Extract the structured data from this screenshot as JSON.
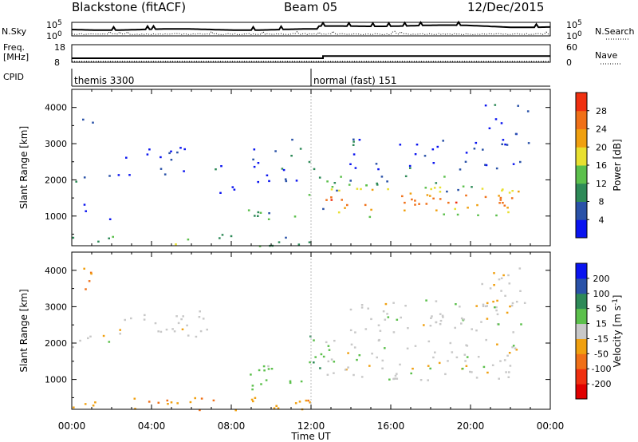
{
  "header": {
    "station": "Blackstone (fitACF)",
    "beam": "Beam 05",
    "date": "12/Dec/2015"
  },
  "chart_data": [
    {
      "type": "line",
      "panel": "noise",
      "left_label": "N.Sky",
      "left_ticks": [
        "10^5",
        "10^0"
      ],
      "right_label": "N.Search",
      "right_ticks": [
        "10^5",
        "10^0"
      ],
      "series": [
        {
          "name": "N.Sky",
          "style": "solid"
        },
        {
          "name": "N.Search",
          "style": "dotted"
        }
      ]
    },
    {
      "type": "line",
      "panel": "frequency",
      "left_label_lines": [
        "Freq.",
        "[MHz]"
      ],
      "left_ticks": [
        "18",
        "8"
      ],
      "right_label": "Nave",
      "right_ticks": [
        "60",
        "0"
      ],
      "series": [
        {
          "name": "Freq.",
          "style": "solid",
          "step_hour": 12.6,
          "before": 10.3,
          "after": 11.5
        },
        {
          "name": "Nave",
          "style": "dotted",
          "level": 0
        }
      ]
    },
    {
      "type": "annotation",
      "panel": "cpid",
      "label": "CPID",
      "modes": [
        {
          "text": "themis 3300",
          "start_hour": 0
        },
        {
          "text": "normal (fast) 151",
          "start_hour": 12
        }
      ]
    },
    {
      "type": "heatmap",
      "panel": "power",
      "ylabel": "Slant Range [km]",
      "ylim": [
        180,
        4500
      ],
      "yticks": [
        1000,
        2000,
        3000,
        4000
      ],
      "xlim_hours": [
        0,
        24
      ],
      "colorbar_label": "Power [dB]",
      "colorbar_ticks": [
        4,
        8,
        12,
        16,
        20,
        24,
        28
      ],
      "colorbar_range": [
        0,
        30
      ],
      "colors": [
        "#0a14f0",
        "#2a52a8",
        "#2e8a58",
        "#5cc04c",
        "#e8e030",
        "#f0a010",
        "#f07018",
        "#f03010",
        "#e00000"
      ],
      "regions": [
        {
          "t": [
            0.0,
            1.0
          ],
          "r": [
            1850,
            2350
          ],
          "v": 8
        },
        {
          "t": [
            0.3,
            1.1
          ],
          "r": [
            3500,
            4150
          ],
          "v": 5
        },
        {
          "t": [
            1.1,
            1.9
          ],
          "r": [
            2000,
            2250
          ],
          "v": 6
        },
        {
          "t": [
            0.5,
            2.0
          ],
          "r": [
            900,
            1400
          ],
          "v": 4
        },
        {
          "t": [
            2.3,
            6.8
          ],
          "r": [
            2150,
            3000
          ],
          "v": 4
        },
        {
          "t": [
            7.0,
            8.5
          ],
          "r": [
            1600,
            2500
          ],
          "v": 4
        },
        {
          "t": [
            8.7,
            11.6
          ],
          "r": [
            750,
            1400
          ],
          "v": 10
        },
        {
          "t": [
            9.0,
            11.6
          ],
          "r": [
            1700,
            3200
          ],
          "v": 4
        },
        {
          "t": [
            11.8,
            12.7
          ],
          "r": [
            1200,
            2700
          ],
          "v": 12
        },
        {
          "t": [
            12.7,
            22.4
          ],
          "r": [
            1000,
            1900
          ],
          "v": 24
        },
        {
          "t": [
            12.7,
            22.4
          ],
          "r": [
            1700,
            2150
          ],
          "v": 10
        },
        {
          "t": [
            13.8,
            22.6
          ],
          "r": [
            2300,
            3200
          ],
          "v": 4
        },
        {
          "t": [
            20.5,
            23.0
          ],
          "r": [
            2900,
            4100
          ],
          "v": 4
        },
        {
          "t": [
            0.0,
            12.0
          ],
          "r": [
            180,
            520
          ],
          "v": 12
        }
      ]
    },
    {
      "type": "heatmap",
      "panel": "velocity",
      "ylabel": "Slant Range [km]",
      "ylim": [
        180,
        4500
      ],
      "yticks": [
        1000,
        2000,
        3000,
        4000
      ],
      "xlim_hours": [
        0,
        24
      ],
      "xticks": [
        "00:00",
        "04:00",
        "08:00",
        "12:00",
        "16:00",
        "20:00",
        "00:00"
      ],
      "xlabel": "Time UT",
      "colorbar_label_parts": [
        "Velocity [m s",
        "-1",
        "]"
      ],
      "colorbar_ticks": [
        200,
        100,
        50,
        15,
        -15,
        -50,
        -100,
        -200
      ],
      "colorbar_range": [
        -250,
        250
      ],
      "colors": [
        "#e00000",
        "#f03010",
        "#f07018",
        "#f0a010",
        "#c8c8c8",
        "#5cc04c",
        "#2e8a58",
        "#2a52a8",
        "#0a14f0"
      ],
      "regions": [
        {
          "t": [
            0.0,
            1.0
          ],
          "r": [
            1850,
            2350
          ],
          "v": 0
        },
        {
          "t": [
            0.3,
            1.1
          ],
          "r": [
            3300,
            4150
          ],
          "v": -60
        },
        {
          "t": [
            1.1,
            1.9
          ],
          "r": [
            2000,
            2300
          ],
          "v": 0
        },
        {
          "t": [
            2.3,
            6.8
          ],
          "r": [
            2150,
            2900
          ],
          "v": 0
        },
        {
          "t": [
            8.7,
            11.6
          ],
          "r": [
            750,
            1400
          ],
          "v": 30
        },
        {
          "t": [
            11.8,
            12.7
          ],
          "r": [
            1200,
            2400
          ],
          "v": 40
        },
        {
          "t": [
            12.7,
            22.4
          ],
          "r": [
            1000,
            2150
          ],
          "v": 0
        },
        {
          "t": [
            13.8,
            22.6
          ],
          "r": [
            2300,
            3200
          ],
          "v": 0
        },
        {
          "t": [
            20.5,
            23.0
          ],
          "r": [
            2900,
            4100
          ],
          "v": 0
        },
        {
          "t": [
            0.0,
            12.0
          ],
          "r": [
            180,
            520
          ],
          "v": -40
        }
      ]
    }
  ]
}
